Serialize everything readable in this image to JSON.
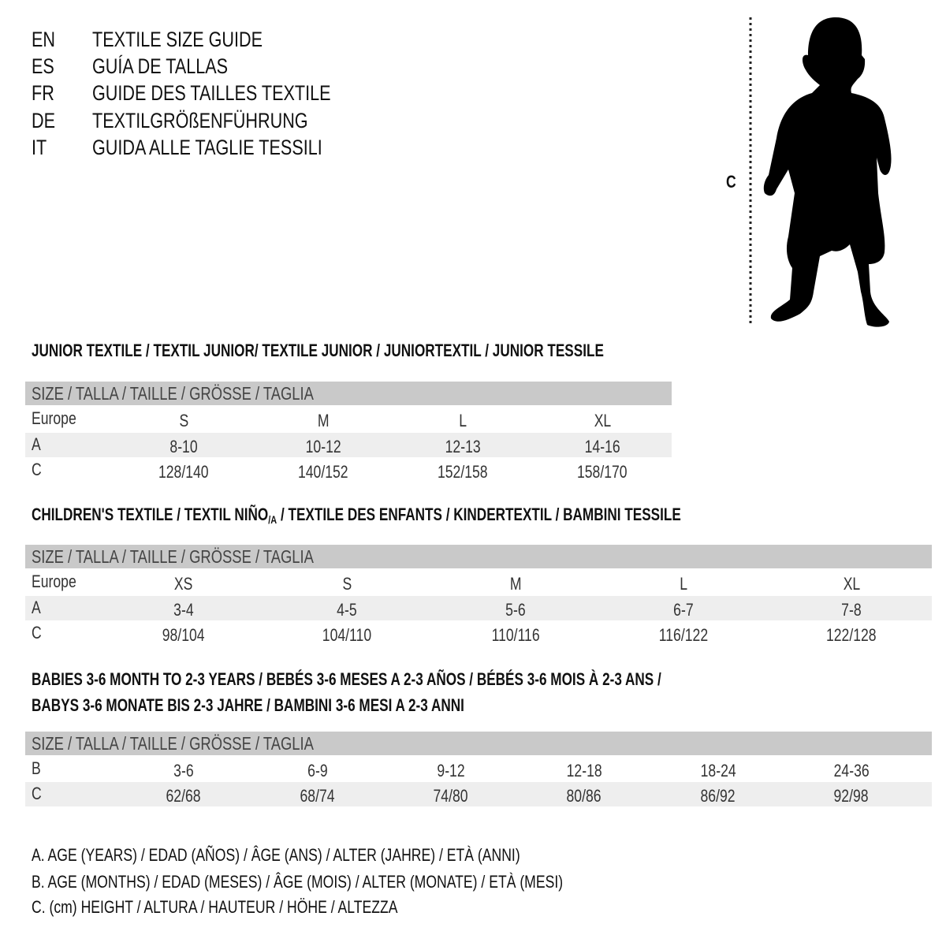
{
  "languages": [
    {
      "code": "EN",
      "title": "TEXTILE SIZE GUIDE"
    },
    {
      "code": "ES",
      "title": "GUÍA DE TALLAS"
    },
    {
      "code": "FR",
      "title": "GUIDE DES TAILLES TEXTILE"
    },
    {
      "code": "DE",
      "title": "TEXTILGRÖßENFÜHRUNG"
    },
    {
      "code": "IT",
      "title": "GUIDA ALLE TAGLIE TESSILI"
    }
  ],
  "figure": {
    "measure_label": "C",
    "icon": "child-silhouette-icon"
  },
  "junior": {
    "heading": "JUNIOR TEXTILE / TEXTIL JUNIOR/ TEXTILE JUNIOR / JUNIORTEXTIL / JUNIOR TESSILE",
    "size_header": "SIZE / TALLA / TAILLE / GRÖSSE / TAGLIA",
    "rows": [
      {
        "label": "Europe",
        "values": [
          "S",
          "M",
          "L",
          "XL"
        ]
      },
      {
        "label": "A",
        "values": [
          "8-10",
          "10-12",
          "12-13",
          "14-16"
        ]
      },
      {
        "label": "C",
        "values": [
          "128/140",
          "140/152",
          "152/158",
          "158/170"
        ]
      }
    ]
  },
  "children": {
    "heading_pre": "CHILDREN'S TEXTILE / TEXTIL NIÑO",
    "heading_sub": "/A",
    "heading_post": " / TEXTILE DES ENFANTS / KINDERTEXTIL / BAMBINI TESSILE",
    "size_header": "SIZE / TALLA / TAILLE / GRÖSSE / TAGLIA",
    "rows": [
      {
        "label": "Europe",
        "values": [
          "XS",
          "S",
          "M",
          "L",
          "XL"
        ]
      },
      {
        "label": "A",
        "values": [
          "3-4",
          "4-5",
          "5-6",
          "6-7",
          "7-8"
        ]
      },
      {
        "label": "C",
        "values": [
          "98/104",
          "104/110",
          "110/116",
          "116/122",
          "122/128"
        ]
      }
    ]
  },
  "babies": {
    "heading_line1": "BABIES 3-6 MONTH TO 2-3 YEARS / BEBÉS 3-6 MESES A 2-3 AÑOS / BÉBÉS 3-6 MOIS À 2-3 ANS /",
    "heading_line2": "BABYS 3-6 MONATE BIS 2-3 JAHRE / BAMBINI 3-6 MESI A 2-3 ANNI",
    "size_header": "SIZE / TALLA / TAILLE / GRÖSSE / TAGLIA",
    "rows": [
      {
        "label": "B",
        "values": [
          "3-6",
          "6-9",
          "9-12",
          "12-18",
          "18-24",
          "24-36"
        ]
      },
      {
        "label": "C",
        "values": [
          "62/68",
          "68/74",
          "74/80",
          "80/86",
          "86/92",
          "92/98"
        ]
      }
    ]
  },
  "legend": [
    "A. AGE (YEARS) / EDAD (AÑOS) / ÂGE (ANS) / ALTER (JAHRE) / ETÀ (ANNI)",
    "B. AGE (MONTHS) / EDAD (MESES) / ÂGE (MOIS) / ALTER (MONATE) / ETÀ (MESI)",
    "C. (cm) HEIGHT / ALTURA / HAUTEUR / HÖHE / ALTEZZA"
  ],
  "colors": {
    "header_band": "#c9c9c9",
    "stripe": "#eeeeee",
    "text": "#111111"
  }
}
